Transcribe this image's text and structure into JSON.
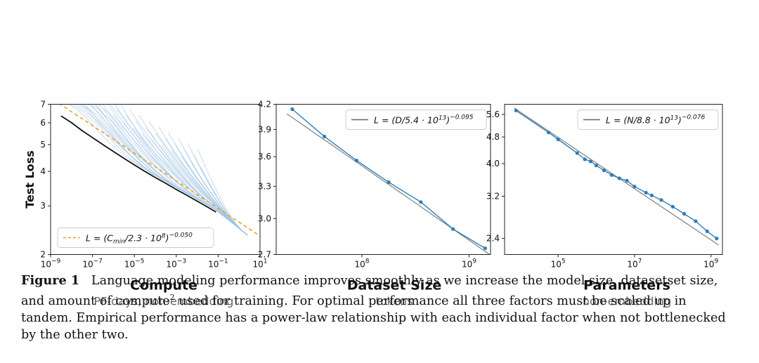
{
  "chart_data": [
    {
      "id": "compute",
      "type": "line",
      "xscale": "log",
      "yscale": "log",
      "xlim_exp": [
        -9,
        1
      ],
      "ylim": [
        2,
        7
      ],
      "xticks": [
        {
          "base": "10",
          "exp": "−9"
        },
        {
          "base": "10",
          "exp": "−7"
        },
        {
          "base": "10",
          "exp": "−5"
        },
        {
          "base": "10",
          "exp": "−3"
        },
        {
          "base": "10",
          "exp": "−1"
        },
        {
          "base": "10",
          "exp": "1"
        }
      ],
      "xtick_exps": [
        -9,
        -7,
        -5,
        -3,
        -1,
        1
      ],
      "yticks": [
        "2",
        "3",
        "4",
        "5",
        "6",
        "7"
      ],
      "ytick_values": [
        2,
        3,
        4,
        5,
        6,
        7
      ],
      "ylabel": "Test Loss",
      "xlabel": "Compute",
      "xsublabel": "PF-days, non-embedding",
      "legend": {
        "prefix": "L = (C",
        "sub": "min",
        "mid": "/2.3 · 10",
        "sup1": "8",
        "close": ")",
        "sup2": "−0.050",
        "style": "dashed",
        "location": "lower-left"
      },
      "fit": {
        "C_scale_exp": 8.362,
        "exponent": -0.05
      },
      "frontier_x_exp": [
        -8.5,
        -8,
        -7.5,
        -7,
        -6.5,
        -6,
        -5.5,
        -5,
        -4.5,
        -4,
        -3.5,
        -3,
        -2.5,
        -2,
        -1.5,
        -1.1
      ],
      "frontier_y": [
        6.35,
        6.0,
        5.62,
        5.3,
        5.0,
        4.72,
        4.46,
        4.22,
        4.0,
        3.8,
        3.62,
        3.44,
        3.28,
        3.12,
        2.97,
        2.85
      ],
      "colors": {
        "runs": "#9ec3e6",
        "frontier": "#111111",
        "fit": "#f0a020"
      }
    },
    {
      "id": "dataset",
      "type": "line",
      "xscale": "log",
      "yscale": "log",
      "xlim_exp": [
        7.2,
        9.2
      ],
      "ylim": [
        2.7,
        4.2
      ],
      "xticks": [
        {
          "base": "10",
          "exp": "8"
        },
        {
          "base": "10",
          "exp": "9"
        }
      ],
      "xtick_exps": [
        8,
        9
      ],
      "yticks": [
        "2.7",
        "3.0",
        "3.3",
        "3.6",
        "3.9",
        "4.2"
      ],
      "ytick_values": [
        2.7,
        3.0,
        3.3,
        3.6,
        3.9,
        4.2
      ],
      "xlabel": "Dataset Size",
      "xsublabel": "tokens",
      "legend": {
        "prefix": "L = (D/5.4 · 10",
        "sup1": "13",
        "close": ")",
        "sup2": "−0.095",
        "style": "solid",
        "location": "top-right"
      },
      "fit": {
        "scale": 54000000000000.0,
        "exponent": -0.095
      },
      "x_exp": [
        7.35,
        7.65,
        7.95,
        8.25,
        8.55,
        8.85,
        9.15
      ],
      "y": [
        4.14,
        3.82,
        3.56,
        3.34,
        3.15,
        2.91,
        2.75
      ],
      "colors": {
        "points": "#2e7fb8",
        "fit": "#888888"
      }
    },
    {
      "id": "params",
      "type": "line",
      "xscale": "log",
      "yscale": "log",
      "xlim_exp": [
        3.6,
        9.3
      ],
      "ylim": [
        2.15,
        6.0
      ],
      "xticks": [
        {
          "base": "10",
          "exp": "5"
        },
        {
          "base": "10",
          "exp": "7"
        },
        {
          "base": "10",
          "exp": "9"
        }
      ],
      "xtick_exps": [
        5,
        7,
        9
      ],
      "yticks": [
        "2.4",
        "3.2",
        "4.0",
        "4.8",
        "5.6"
      ],
      "ytick_values": [
        2.4,
        3.2,
        4.0,
        4.8,
        5.6
      ],
      "xlabel": "Parameters",
      "xsublabel": "non-embedding",
      "legend": {
        "prefix": "L = (N/8.8 · 10",
        "sup1": "13",
        "close": ")",
        "sup2": "−0.076",
        "style": "solid",
        "location": "top-right"
      },
      "fit": {
        "scale": 88000000000000.0,
        "exponent": -0.076
      },
      "x_exp": [
        3.9,
        4.75,
        5.0,
        5.5,
        5.7,
        5.85,
        6.0,
        6.2,
        6.4,
        6.6,
        6.8,
        7.0,
        7.3,
        7.45,
        7.7,
        8.0,
        8.3,
        8.6,
        8.9,
        9.15
      ],
      "y": [
        5.75,
        4.95,
        4.72,
        4.3,
        4.12,
        4.06,
        3.95,
        3.82,
        3.7,
        3.62,
        3.56,
        3.42,
        3.28,
        3.22,
        3.12,
        2.98,
        2.84,
        2.7,
        2.52,
        2.4
      ],
      "colors": {
        "points": "#2e7fb8",
        "fit": "#888888"
      }
    }
  ],
  "caption": {
    "label": "Figure 1",
    "text": "Language modeling performance improves smoothly as we increase the model size, datasetset size, and amount of compute",
    "footnote": "2",
    "text2": " used for training. For optimal performance all three factors must be scaled up in tandem. Empirical performance has a power-law relationship with each individual factor when not bottlenecked by the other two."
  }
}
